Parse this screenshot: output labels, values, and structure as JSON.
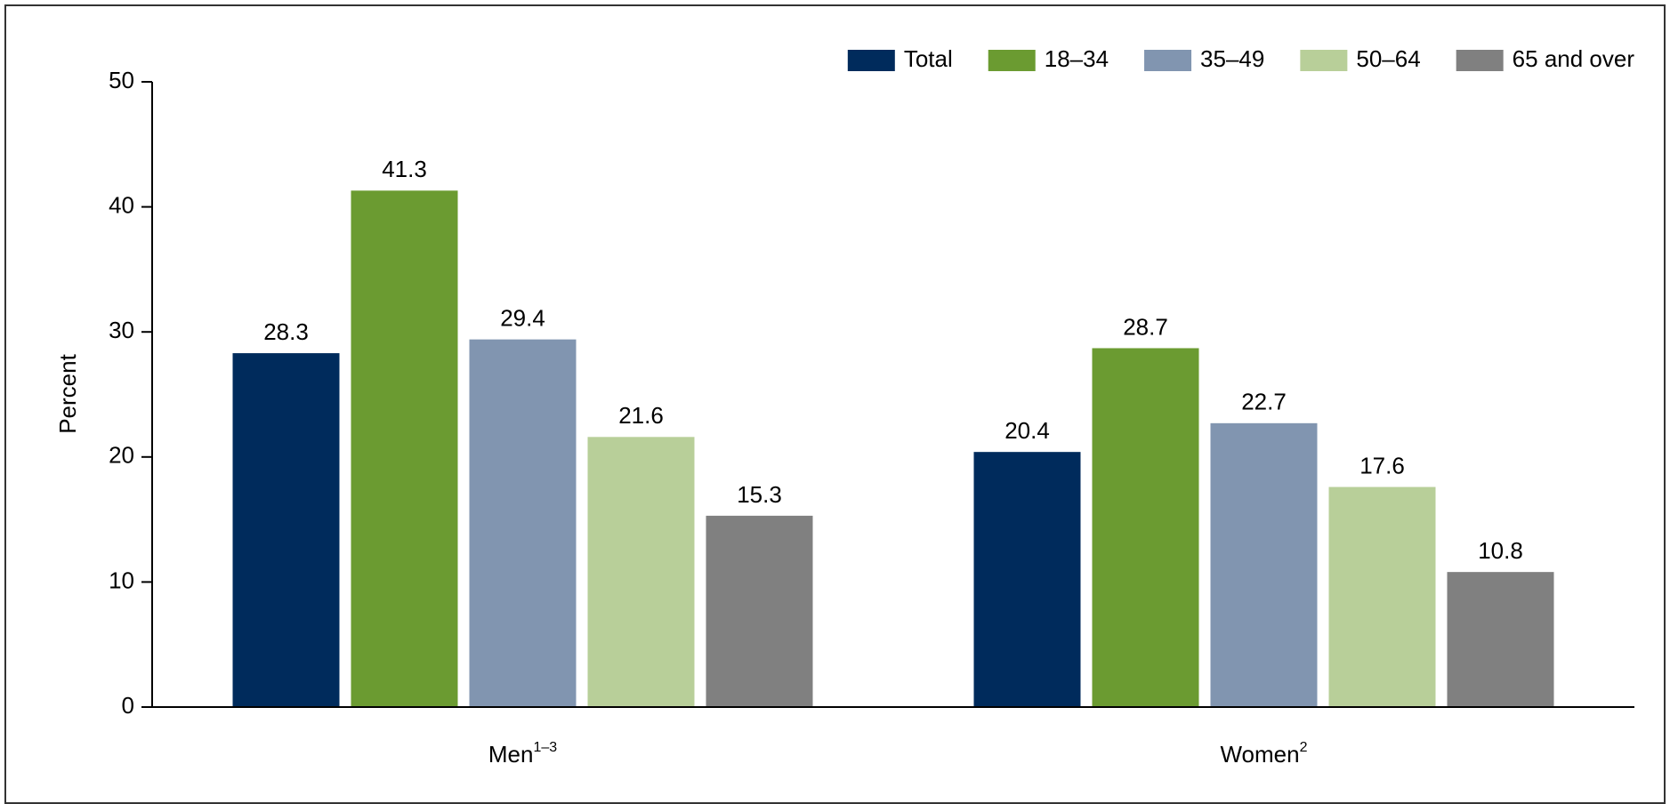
{
  "chart_data": {
    "type": "bar",
    "ylabel": "Percent",
    "categories": [
      "Men",
      "Women"
    ],
    "category_notes": [
      "1–3",
      "2"
    ],
    "series": [
      {
        "name": "Total",
        "color": "#002b5c",
        "values": [
          28.3,
          20.4
        ]
      },
      {
        "name": "18–34",
        "color": "#6b9b31",
        "values": [
          41.3,
          28.7
        ]
      },
      {
        "name": "35–49",
        "color": "#8195b0",
        "values": [
          29.4,
          22.7
        ]
      },
      {
        "name": "50–64",
        "color": "#b8cf99",
        "values": [
          21.6,
          17.6
        ]
      },
      {
        "name": "65 and over",
        "color": "#808080",
        "values": [
          15.3,
          10.8
        ]
      }
    ],
    "ylim": [
      0,
      50
    ],
    "yticks": [
      0,
      10,
      20,
      30,
      40,
      50
    ],
    "legend": "top-right"
  }
}
